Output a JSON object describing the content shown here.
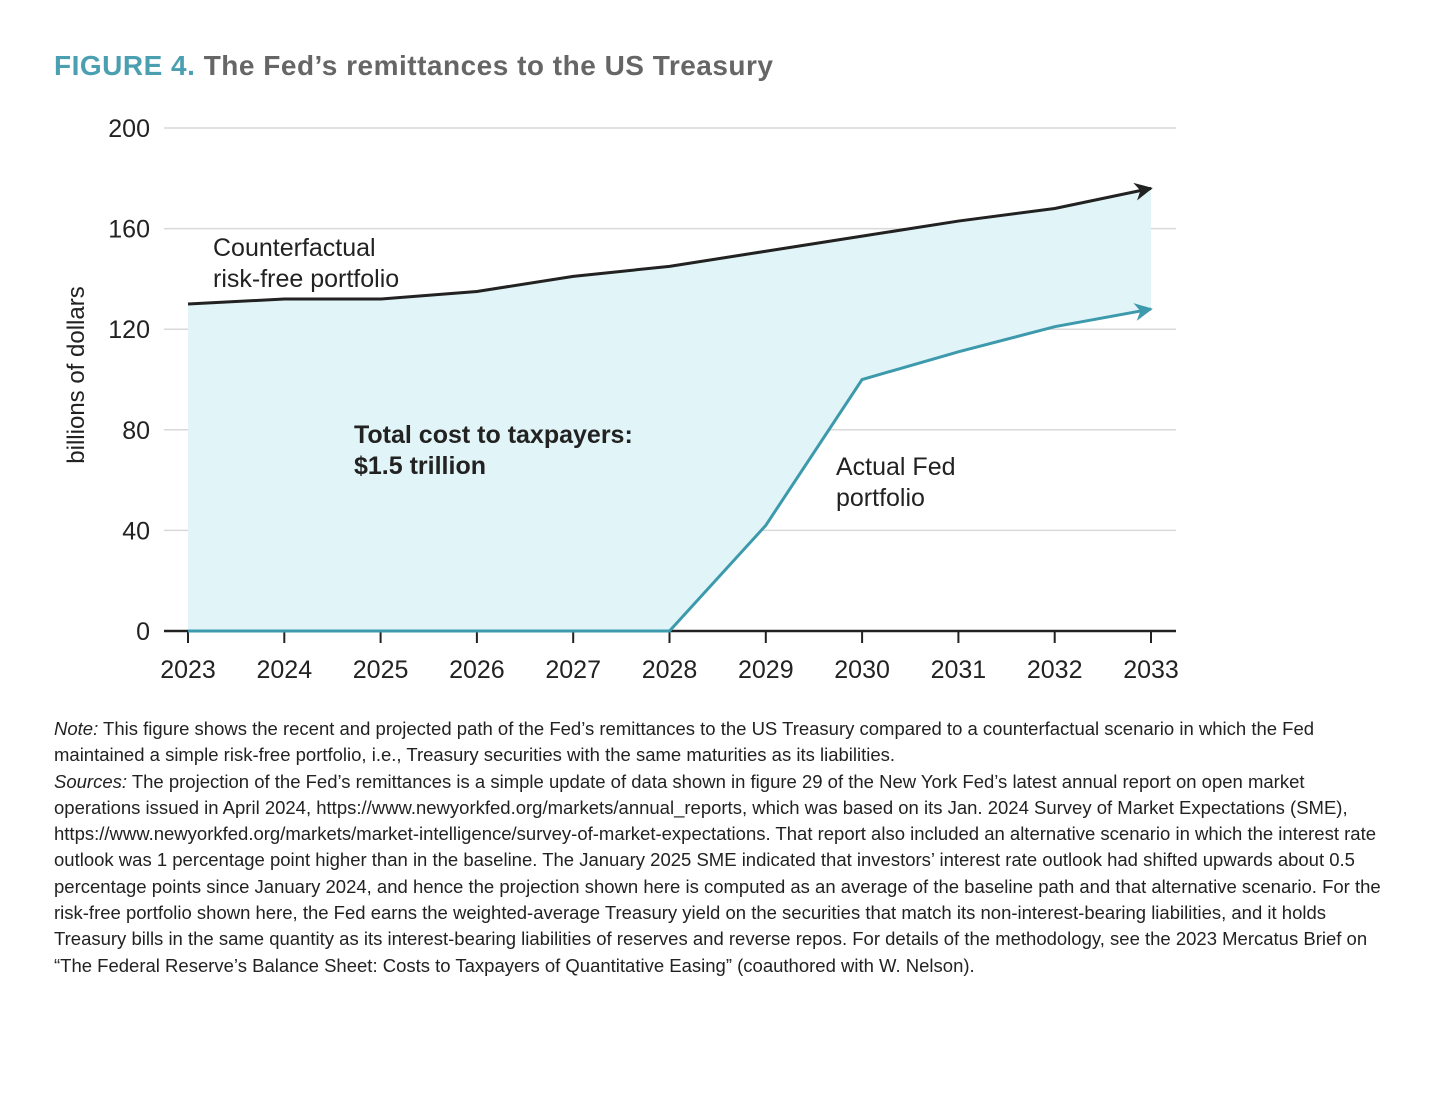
{
  "figure_label": "FIGURE 4.",
  "title": "The Fed’s remittances to the US Treasury",
  "chart_data": {
    "type": "area",
    "title": "The Fed’s remittances to the US Treasury",
    "xlabel": "",
    "ylabel": "billions of dollars",
    "ylim": [
      0,
      200
    ],
    "yticks": [
      0,
      40,
      80,
      120,
      160,
      200
    ],
    "xlim": [
      2023,
      2033
    ],
    "x": [
      2023,
      2024,
      2025,
      2026,
      2027,
      2028,
      2029,
      2030,
      2031,
      2032,
      2033
    ],
    "grid": true,
    "series": [
      {
        "name": "Counterfactual risk-free portfolio",
        "label_lines": [
          "Counterfactual",
          "risk-free portfolio"
        ],
        "color": "#222222",
        "values": [
          130,
          132,
          132,
          135,
          141,
          145,
          151,
          157,
          163,
          168,
          176
        ]
      },
      {
        "name": "Actual Fed portfolio",
        "label_lines": [
          "Actual Fed",
          "portfolio"
        ],
        "color": "#3d9aac",
        "values": [
          0,
          0,
          0,
          0,
          0,
          0,
          42,
          100,
          111,
          121,
          128
        ]
      }
    ],
    "fill_between_color": "#e1f4f7",
    "annotation": [
      "Total cost to taxpayers:",
      "$1.5 trillion"
    ]
  },
  "note": {
    "label": "Note:",
    "text": " This figure shows the recent and projected path of the Fed’s remittances to the US Treasury compared to a counterfactual scenario in which the Fed maintained a simple risk-free portfolio, i.e., Treasury securities with the same maturities as its liabilities."
  },
  "sources": {
    "label": "Sources:",
    "text": " The projection of the Fed’s remittances is a simple update of data shown in figure 29 of the New York Fed’s latest annual report on open market operations issued in April 2024, https://www.newyorkfed.org/markets/annual_reports, which was based on its Jan. 2024 Survey of Market Expectations (SME), https://www.newyorkfed.org/markets/market-intelligence/survey-of-market-expectations. That report also included an alternative scenario in which the interest rate outlook was 1 percentage point higher than in the baseline. The January 2025 SME indicated that investors’ interest rate outlook had shifted upwards about 0.5 percentage points since January 2024, and hence the projection shown here is computed as an average of the baseline path and that alternative scenario. For the risk-free portfolio shown here, the Fed earns the weighted-average Treasury yield on the securities that match its non-interest-bearing liabilities, and it holds Treasury bills in the same quantity as its interest-bearing liabilities of reserves and reverse repos. For details of the methodology, see the 2023 Mercatus Brief on “The Federal Reserve’s Balance Sheet: Costs to Taxpayers of Quantitative Easing” (coauthored with W. Nelson)."
  }
}
